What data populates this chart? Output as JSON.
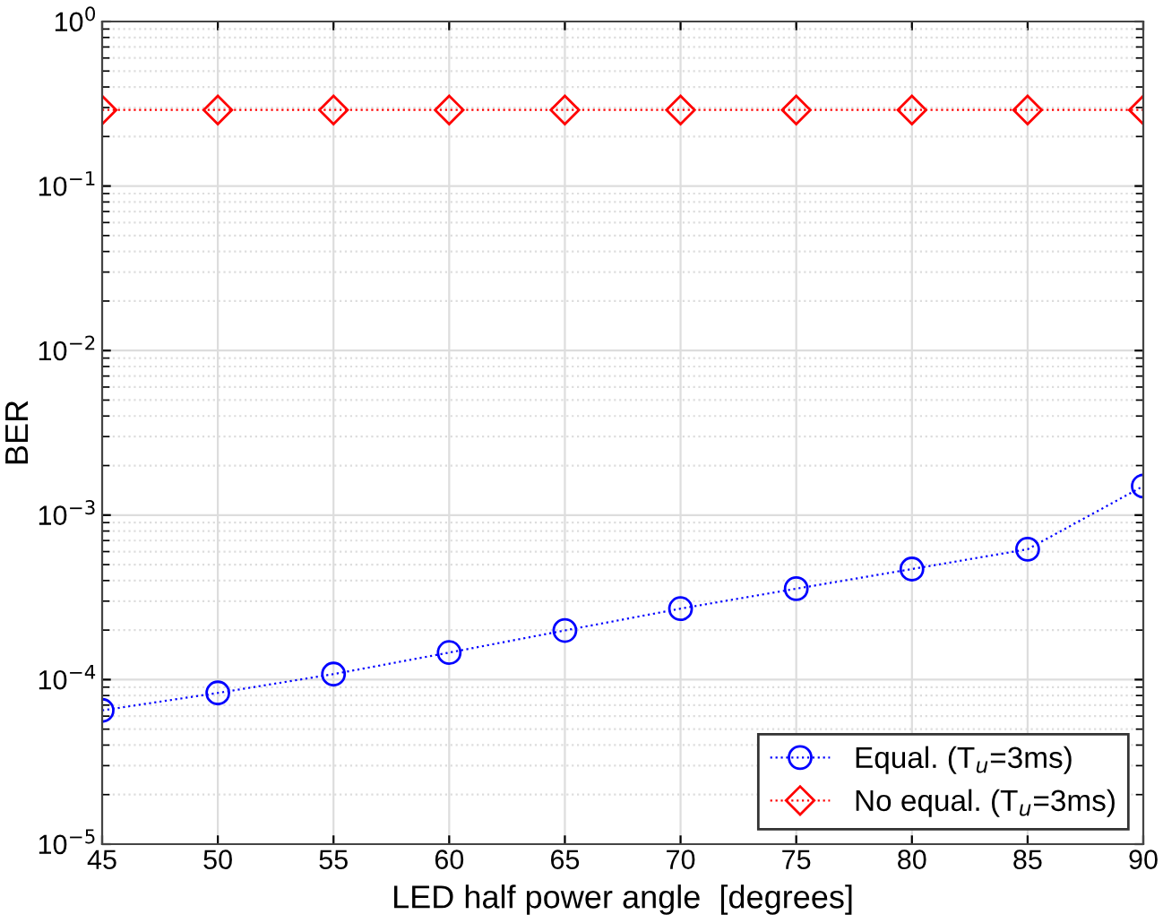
{
  "chart_data": {
    "type": "line",
    "xlabel": "LED half power angle  [degrees]",
    "ylabel": "BER",
    "x": [
      45,
      50,
      55,
      60,
      65,
      70,
      75,
      80,
      85,
      90
    ],
    "series": [
      {
        "name": "Equal. (T$_{u}$=3ms)",
        "color": "#0000ff",
        "marker": "circle",
        "line_style": "dotted",
        "values": [
          6.5e-05,
          8.3e-05,
          0.000108,
          0.000146,
          0.000199,
          0.00027,
          0.000357,
          0.00047,
          0.00062,
          0.0015
        ]
      },
      {
        "name": "No equal. (T$_{u}$=3ms)",
        "color": "#ff0000",
        "marker": "diamond",
        "line_style": "dotted",
        "values": [
          0.29,
          0.29,
          0.29,
          0.29,
          0.29,
          0.29,
          0.29,
          0.29,
          0.29,
          0.29
        ]
      }
    ],
    "log": "y",
    "xlim": [
      45,
      90
    ],
    "xticks": [
      45,
      50,
      55,
      60,
      65,
      70,
      75,
      80,
      85,
      90
    ],
    "ylim": [
      1e-05,
      1
    ],
    "yticks": [
      {
        "value": 1e-05,
        "label": "10$^{−5}$"
      },
      {
        "value": 0.0001,
        "label": "10$^{−4}$"
      },
      {
        "value": 0.001,
        "label": "10$^{−3}$"
      },
      {
        "value": 0.01,
        "label": "10$^{−2}$"
      },
      {
        "value": 0.1,
        "label": "10$^{−1}$"
      },
      {
        "value": 1,
        "label": "10$^{0}$"
      }
    ],
    "grid": true,
    "legend": "bottom right"
  }
}
